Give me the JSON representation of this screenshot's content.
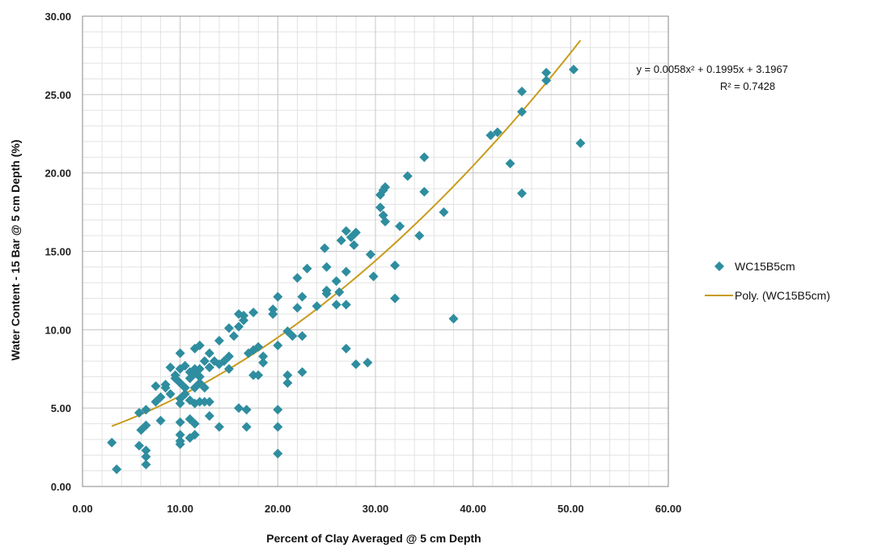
{
  "colors": {
    "series": "#2e8d9f",
    "trend": "#c89b1b",
    "grid": "#c8c8c8",
    "minorGrid": "#e3e3e3",
    "axis": "#888888"
  },
  "chart_data": {
    "type": "scatter",
    "xlabel": "Percent of Clay Averaged @ 5 cm Depth",
    "ylabel": "Water Content - 15 Bar @ 5 cm Depth (%)",
    "xlim": [
      0,
      60
    ],
    "ylim": [
      0,
      30
    ],
    "xticks": [
      "0.00",
      "10.00",
      "20.00",
      "30.00",
      "40.00",
      "50.00",
      "60.00"
    ],
    "yticks": [
      "0.00",
      "5.00",
      "10.00",
      "15.00",
      "20.00",
      "25.00",
      "30.00"
    ],
    "grid": true,
    "legend_position": "right",
    "series": [
      {
        "name": "WC15B5cm",
        "marker": "diamond",
        "points": [
          [
            3.0,
            2.8
          ],
          [
            3.5,
            1.1
          ],
          [
            5.8,
            2.6
          ],
          [
            6.0,
            3.6
          ],
          [
            6.5,
            3.9
          ],
          [
            6.5,
            1.4
          ],
          [
            6.5,
            1.9
          ],
          [
            6.5,
            2.3
          ],
          [
            5.8,
            4.7
          ],
          [
            6.5,
            4.9
          ],
          [
            7.5,
            5.4
          ],
          [
            7.5,
            6.4
          ],
          [
            8.0,
            4.2
          ],
          [
            8.0,
            5.7
          ],
          [
            8.5,
            6.3
          ],
          [
            8.5,
            6.5
          ],
          [
            9.0,
            5.9
          ],
          [
            9.0,
            7.6
          ],
          [
            9.5,
            6.9
          ],
          [
            9.5,
            7.1
          ],
          [
            10.0,
            8.5
          ],
          [
            10.0,
            7.5
          ],
          [
            10.0,
            6.6
          ],
          [
            10.0,
            5.6
          ],
          [
            10.0,
            5.3
          ],
          [
            10.0,
            4.1
          ],
          [
            10.0,
            3.3
          ],
          [
            10.0,
            2.9
          ],
          [
            10.0,
            2.7
          ],
          [
            10.5,
            7.7
          ],
          [
            10.5,
            6.3
          ],
          [
            10.5,
            5.9
          ],
          [
            11.0,
            7.3
          ],
          [
            11.0,
            6.9
          ],
          [
            11.0,
            5.5
          ],
          [
            11.0,
            4.3
          ],
          [
            11.0,
            3.1
          ],
          [
            11.5,
            8.8
          ],
          [
            11.5,
            7.5
          ],
          [
            11.5,
            7.2
          ],
          [
            11.5,
            6.3
          ],
          [
            11.5,
            5.3
          ],
          [
            11.5,
            4.0
          ],
          [
            11.5,
            3.3
          ],
          [
            12.0,
            9.0
          ],
          [
            12.0,
            7.5
          ],
          [
            12.0,
            7.0
          ],
          [
            12.0,
            6.6
          ],
          [
            12.0,
            5.4
          ],
          [
            12.5,
            8.0
          ],
          [
            12.5,
            6.3
          ],
          [
            12.5,
            5.4
          ],
          [
            13.0,
            8.5
          ],
          [
            13.0,
            7.6
          ],
          [
            13.0,
            5.4
          ],
          [
            13.0,
            4.5
          ],
          [
            13.5,
            8.0
          ],
          [
            14.0,
            9.3
          ],
          [
            14.0,
            7.8
          ],
          [
            14.0,
            3.8
          ],
          [
            14.5,
            8.0
          ],
          [
            15.0,
            10.1
          ],
          [
            15.0,
            8.3
          ],
          [
            15.0,
            7.5
          ],
          [
            15.5,
            9.6
          ],
          [
            16.0,
            11.0
          ],
          [
            16.0,
            10.2
          ],
          [
            16.0,
            5.0
          ],
          [
            16.5,
            10.9
          ],
          [
            16.5,
            10.6
          ],
          [
            16.8,
            4.9
          ],
          [
            16.8,
            3.8
          ],
          [
            17.0,
            8.5
          ],
          [
            17.5,
            11.1
          ],
          [
            17.5,
            8.7
          ],
          [
            17.5,
            7.1
          ],
          [
            18.0,
            8.9
          ],
          [
            18.0,
            7.1
          ],
          [
            18.5,
            8.3
          ],
          [
            18.5,
            7.9
          ],
          [
            19.5,
            11.3
          ],
          [
            19.5,
            11.0
          ],
          [
            20.0,
            12.1
          ],
          [
            20.0,
            9.0
          ],
          [
            20.0,
            4.9
          ],
          [
            20.0,
            3.8
          ],
          [
            20.0,
            2.1
          ],
          [
            21.0,
            9.9
          ],
          [
            21.0,
            7.1
          ],
          [
            21.0,
            6.6
          ],
          [
            21.5,
            9.6
          ],
          [
            22.0,
            11.4
          ],
          [
            22.0,
            13.3
          ],
          [
            22.5,
            12.1
          ],
          [
            22.5,
            9.6
          ],
          [
            22.5,
            7.3
          ],
          [
            23.0,
            13.9
          ],
          [
            24.0,
            11.5
          ],
          [
            24.8,
            15.2
          ],
          [
            25.0,
            14.0
          ],
          [
            25.0,
            12.5
          ],
          [
            25.0,
            12.3
          ],
          [
            26.0,
            11.6
          ],
          [
            26.0,
            13.1
          ],
          [
            26.3,
            12.4
          ],
          [
            26.5,
            15.7
          ],
          [
            27.0,
            16.3
          ],
          [
            27.0,
            13.7
          ],
          [
            27.0,
            11.6
          ],
          [
            27.0,
            8.8
          ],
          [
            27.5,
            15.9
          ],
          [
            27.8,
            15.4
          ],
          [
            28.0,
            16.2
          ],
          [
            28.0,
            7.8
          ],
          [
            29.2,
            7.9
          ],
          [
            29.5,
            14.8
          ],
          [
            29.8,
            13.4
          ],
          [
            30.5,
            18.6
          ],
          [
            30.5,
            17.8
          ],
          [
            30.8,
            17.3
          ],
          [
            30.8,
            18.9
          ],
          [
            31.0,
            19.1
          ],
          [
            31.0,
            16.9
          ],
          [
            32.0,
            14.1
          ],
          [
            32.0,
            12.0
          ],
          [
            32.5,
            16.6
          ],
          [
            33.3,
            19.8
          ],
          [
            34.5,
            16.0
          ],
          [
            35.0,
            21.0
          ],
          [
            35.0,
            18.8
          ],
          [
            37.0,
            17.5
          ],
          [
            38.0,
            10.7
          ],
          [
            41.8,
            22.4
          ],
          [
            42.5,
            22.6
          ],
          [
            43.8,
            20.6
          ],
          [
            45.0,
            25.2
          ],
          [
            45.0,
            23.9
          ],
          [
            45.0,
            18.7
          ],
          [
            47.5,
            26.4
          ],
          [
            47.5,
            25.9
          ],
          [
            50.3,
            26.6
          ],
          [
            51.0,
            21.9
          ]
        ]
      },
      {
        "name": "Poly. (WC15B5cm)",
        "type": "trendline",
        "coefficients": [
          0.0058,
          0.1995,
          3.1967
        ],
        "x_range": [
          3.0,
          51.0
        ]
      }
    ],
    "annotations": {
      "equation": "y = 0.0058x² + 0.1995x + 3.1967",
      "r2": "R² = 0.7428"
    }
  }
}
